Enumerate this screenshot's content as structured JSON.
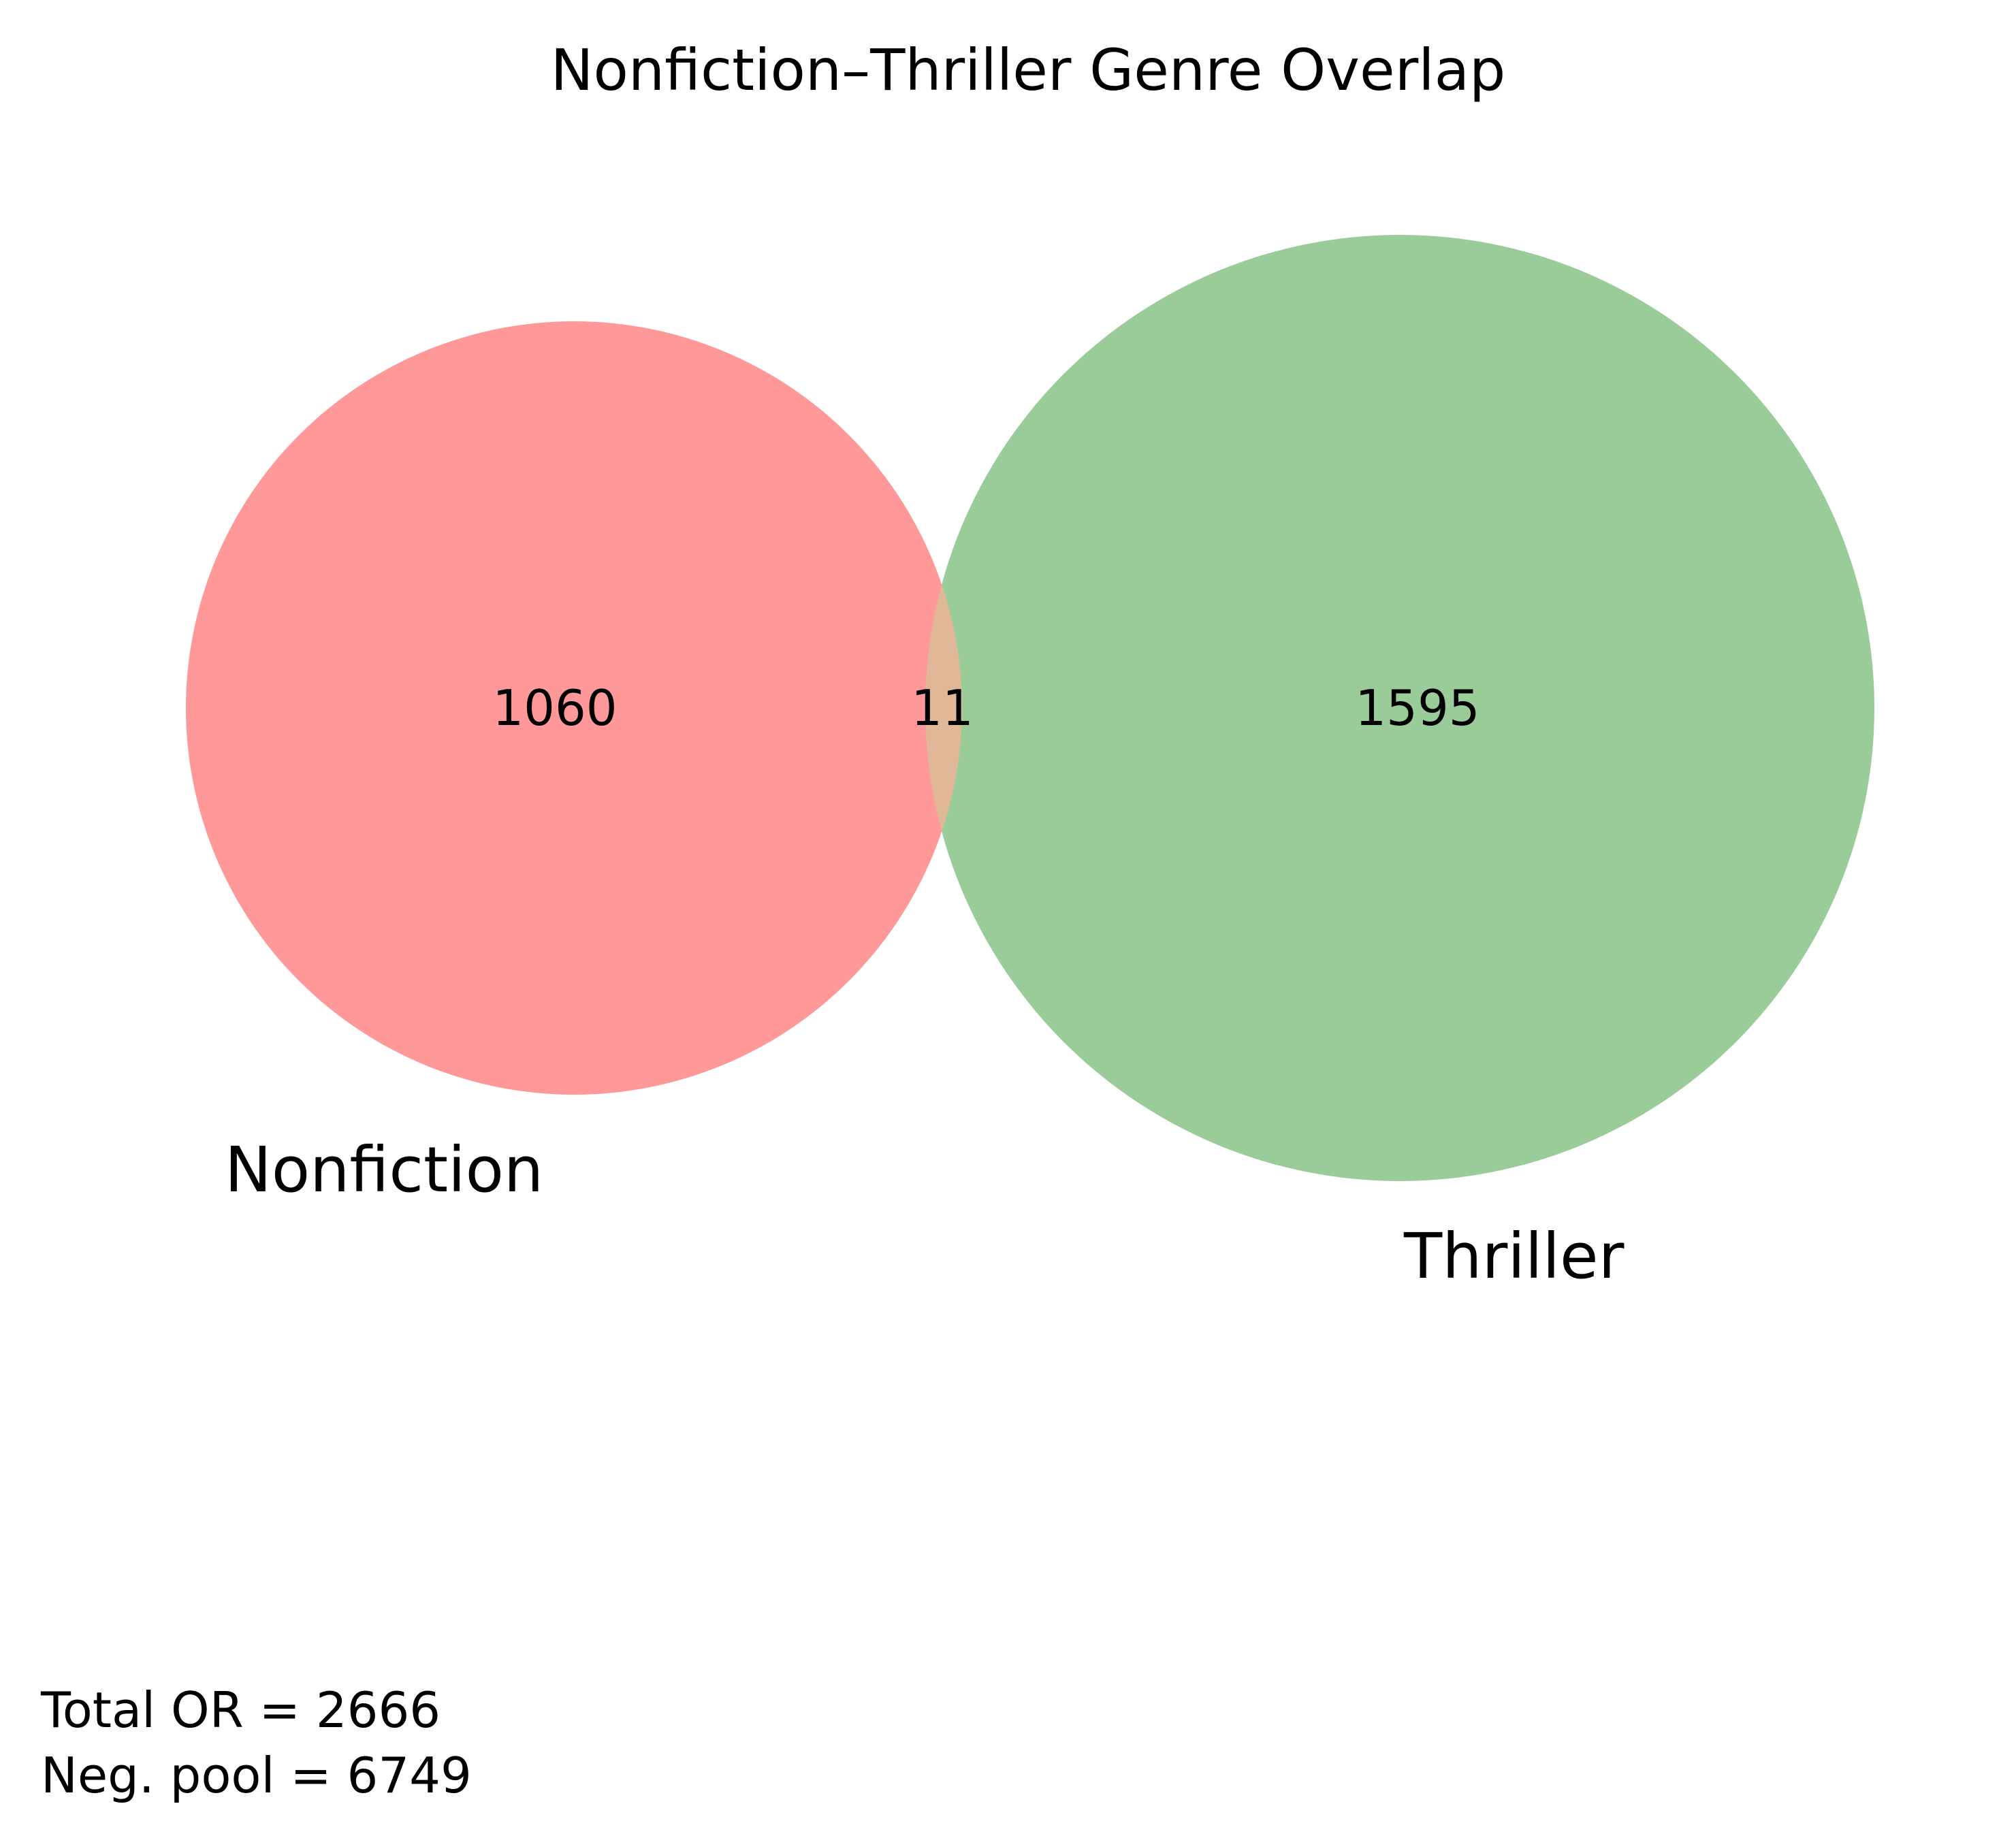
{
  "title": "Nonfiction–Thriller Genre Overlap",
  "sets": [
    {
      "name": "Nonfiction",
      "only_count": "1060",
      "color": "#ff9999"
    },
    {
      "name": "Thriller",
      "only_count": "1595",
      "color": "#99cc99"
    }
  ],
  "intersection": {
    "count": "11",
    "color": "#e0b898"
  },
  "stats": {
    "total_line": "Total OR = 2666",
    "pool_line": "Neg. pool = 6749"
  }
}
